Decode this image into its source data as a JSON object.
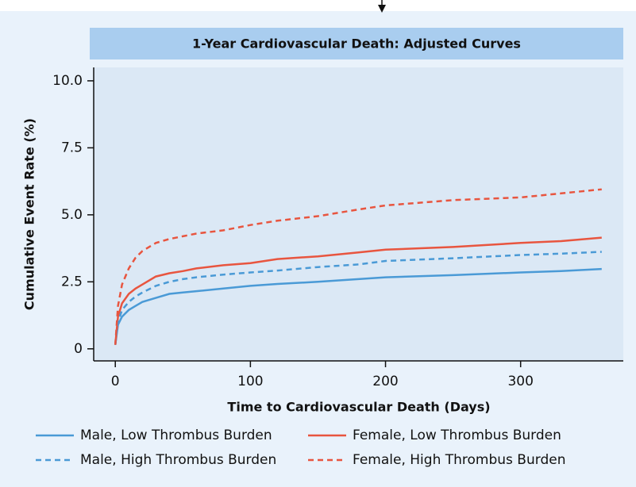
{
  "chart_data": {
    "type": "line",
    "title": "1-Year Cardiovascular Death: Adjusted Curves",
    "xlabel": "Time to Cardiovascular Death (Days)",
    "ylabel": "Cumulative Event Rate (%)",
    "x": [
      0,
      2,
      5,
      10,
      15,
      20,
      30,
      40,
      50,
      60,
      80,
      100,
      120,
      150,
      180,
      200,
      250,
      300,
      330,
      360
    ],
    "series": [
      {
        "name": "Male, Low Thrombus Burden",
        "color": "#4a9ad6",
        "style": "solid",
        "values": [
          0.15,
          0.9,
          1.2,
          1.45,
          1.6,
          1.75,
          1.9,
          2.05,
          2.1,
          2.15,
          2.25,
          2.35,
          2.42,
          2.5,
          2.6,
          2.67,
          2.75,
          2.85,
          2.9,
          2.98
        ]
      },
      {
        "name": "Female, Low Thrombus Burden",
        "color": "#e8553f",
        "style": "solid",
        "values": [
          0.15,
          1.2,
          1.7,
          2.05,
          2.25,
          2.4,
          2.7,
          2.82,
          2.9,
          3.0,
          3.12,
          3.2,
          3.35,
          3.45,
          3.6,
          3.7,
          3.8,
          3.95,
          4.02,
          4.15
        ]
      },
      {
        "name": "Male, High Thrombus Burden",
        "color": "#4a9ad6",
        "style": "dashed",
        "values": [
          0.15,
          1.0,
          1.45,
          1.75,
          1.95,
          2.1,
          2.35,
          2.5,
          2.6,
          2.67,
          2.77,
          2.85,
          2.92,
          3.05,
          3.15,
          3.28,
          3.38,
          3.5,
          3.55,
          3.62
        ]
      },
      {
        "name": "Female, High Thrombus Burden",
        "color": "#e8553f",
        "style": "dashed",
        "values": [
          0.15,
          1.6,
          2.4,
          3.0,
          3.4,
          3.65,
          3.95,
          4.1,
          4.2,
          4.3,
          4.42,
          4.62,
          4.78,
          4.95,
          5.2,
          5.35,
          5.55,
          5.65,
          5.8,
          5.95
        ]
      }
    ],
    "xlim": [
      -16,
      376
    ],
    "xticks": [
      0,
      100,
      200,
      300
    ],
    "ylim": [
      -0.45,
      10.5
    ],
    "yticks": [
      0,
      2.5,
      {
        "value": 5,
        "label": "5.0"
      },
      7.5,
      {
        "value": 10,
        "label": "10.0"
      }
    ]
  }
}
